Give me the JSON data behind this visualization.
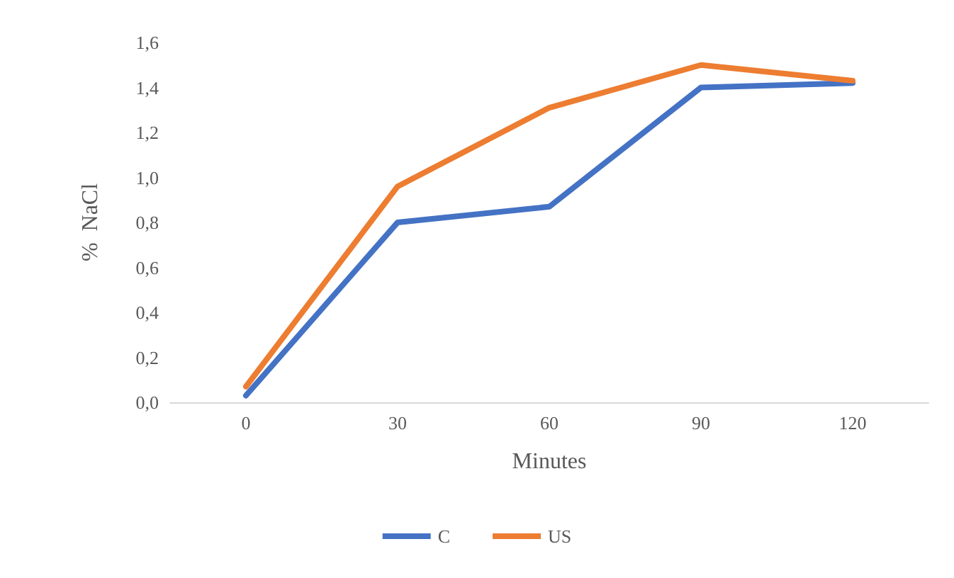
{
  "chart_data": {
    "type": "line",
    "xlabel": "Minutes",
    "ylabel": "%  NaCl",
    "categories": [
      "0",
      "30",
      "60",
      "90",
      "120"
    ],
    "series": [
      {
        "name": "C",
        "color": "#4472c4",
        "values": [
          0.03,
          0.8,
          0.87,
          1.4,
          1.42
        ]
      },
      {
        "name": "US",
        "color": "#ed7d31",
        "values": [
          0.07,
          0.96,
          1.31,
          1.5,
          1.43
        ]
      }
    ],
    "ylim": [
      0,
      1.6
    ],
    "yticks": [
      {
        "value": 0,
        "label": "0,0"
      },
      {
        "value": 0.2,
        "label": "0,2"
      },
      {
        "value": 0.4,
        "label": "0,4"
      },
      {
        "value": 0.6,
        "label": "0,6"
      },
      {
        "value": 0.8,
        "label": "0,8"
      },
      {
        "value": 1,
        "label": "1,0"
      },
      {
        "value": 1.2,
        "label": "1,2"
      },
      {
        "value": 1.4,
        "label": "1,4"
      },
      {
        "value": 1.6,
        "label": "1,6"
      }
    ],
    "grid": false,
    "legend": "bottom",
    "marker": "none",
    "line_style": "solid"
  }
}
